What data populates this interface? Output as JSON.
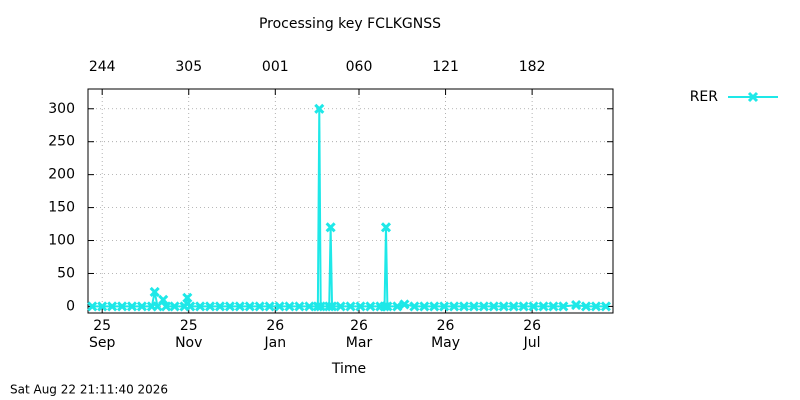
{
  "chart_data": {
    "type": "line",
    "title": "Processing key FCLKGNSS",
    "xlabel": "Time",
    "timestamp": "Sat Aug 22 21:11:40 2026",
    "x": [
      "2025-08-25",
      "2025-09-01",
      "2025-09-08",
      "2025-09-15",
      "2025-09-22",
      "2025-09-29",
      "2025-10-06",
      "2025-10-08",
      "2025-10-10",
      "2025-10-14",
      "2025-10-16",
      "2025-10-22",
      "2025-10-29",
      "2025-10-31",
      "2025-11-02",
      "2025-11-09",
      "2025-11-16",
      "2025-11-23",
      "2025-11-30",
      "2025-12-07",
      "2025-12-14",
      "2025-12-21",
      "2025-12-28",
      "2026-01-04",
      "2026-01-11",
      "2026-01-18",
      "2026-01-25",
      "2026-01-31",
      "2026-02-01",
      "2026-02-02",
      "2026-02-08",
      "2026-02-09",
      "2026-02-10",
      "2026-02-16",
      "2026-02-23",
      "2026-03-02",
      "2026-03-09",
      "2026-03-16",
      "2026-03-19",
      "2026-03-20",
      "2026-03-21",
      "2026-03-28",
      "2026-04-02",
      "2026-04-09",
      "2026-04-16",
      "2026-04-23",
      "2026-04-30",
      "2026-05-07",
      "2026-05-14",
      "2026-05-21",
      "2026-05-28",
      "2026-06-04",
      "2026-06-11",
      "2026-06-18",
      "2026-06-25",
      "2026-07-02",
      "2026-07-09",
      "2026-07-16",
      "2026-07-23",
      "2026-08-01",
      "2026-08-08",
      "2026-08-15",
      "2026-08-22"
    ],
    "series": [
      {
        "name": "RER",
        "color": "#1ee8e8",
        "values": [
          0,
          0,
          0,
          0,
          0,
          0,
          0,
          22,
          0,
          10,
          0,
          0,
          0,
          13,
          0,
          0,
          0,
          0,
          0,
          0,
          0,
          0,
          0,
          0,
          0,
          0,
          0,
          0,
          300,
          0,
          0,
          120,
          0,
          0,
          0,
          0,
          0,
          0,
          0,
          120,
          0,
          0,
          3,
          0,
          0,
          0,
          0,
          0,
          0,
          0,
          0,
          0,
          0,
          0,
          0,
          0,
          0,
          0,
          0,
          2,
          0,
          0,
          0
        ]
      }
    ],
    "xlim": [
      "2025-08-22",
      "2026-08-27"
    ],
    "xticks": [
      {
        "value": "2025-09-01",
        "label": "25\nSep"
      },
      {
        "value": "2025-11-01",
        "label": "25\nNov"
      },
      {
        "value": "2026-01-01",
        "label": "26\nJan"
      },
      {
        "value": "2026-03-01",
        "label": "26\nMar"
      },
      {
        "value": "2026-05-01",
        "label": "26\nMay"
      },
      {
        "value": "2026-07-01",
        "label": "26\nJul"
      }
    ],
    "x2ticks": [
      {
        "value": "2025-09-01",
        "label": "244"
      },
      {
        "value": "2025-11-01",
        "label": "305"
      },
      {
        "value": "2026-01-01",
        "label": "001"
      },
      {
        "value": "2026-03-01",
        "label": "060"
      },
      {
        "value": "2026-05-01",
        "label": "121"
      },
      {
        "value": "2026-07-01",
        "label": "182"
      }
    ],
    "ylim": [
      -10,
      330
    ],
    "yticks": [
      0,
      50,
      100,
      150,
      200,
      250,
      300
    ],
    "grid": true,
    "legend": "outside-top-right"
  }
}
